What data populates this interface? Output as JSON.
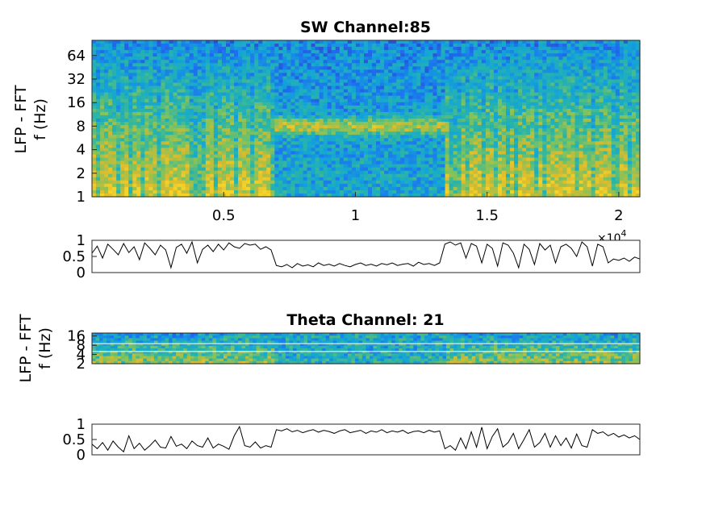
{
  "chart_data": [
    {
      "type": "heatmap",
      "title": "SW Channel:85",
      "ylabel_lines": [
        "LFP - FFT",
        "f (Hz)"
      ],
      "y_scale": "log",
      "y_ticks": [
        "1",
        "2",
        "4",
        "8",
        "16",
        "32",
        "64"
      ],
      "y_tick_values": [
        1,
        2,
        4,
        8,
        16,
        32,
        64
      ],
      "ylim": [
        1,
        100
      ],
      "x_ticks": [
        "0.5",
        "1",
        "1.5",
        "2"
      ],
      "x_tick_values": [
        0.5,
        1,
        1.5,
        2
      ],
      "xlim": [
        0,
        2.08
      ],
      "x_exponent": "×10",
      "x_exponent_power": "4",
      "colormap": [
        "#3e26a8",
        "#1e6ef2",
        "#13a5d8",
        "#2bb5a5",
        "#7fc35e",
        "#d9ba2e",
        "#f5d42a"
      ],
      "low_power_intervals": [
        [
          0.69,
          1.34
        ]
      ],
      "band_peak_hz": 8
    },
    {
      "type": "line",
      "title": "",
      "y_ticks": [
        "0",
        "0.5",
        "1"
      ],
      "y_tick_values": [
        0,
        0.5,
        1
      ],
      "ylim": [
        0,
        1
      ],
      "xlim": [
        0,
        2.08
      ],
      "x": [
        0.0,
        0.02,
        0.04,
        0.06,
        0.08,
        0.1,
        0.12,
        0.14,
        0.16,
        0.18,
        0.2,
        0.22,
        0.24,
        0.26,
        0.28,
        0.3,
        0.32,
        0.34,
        0.36,
        0.38,
        0.4,
        0.42,
        0.44,
        0.46,
        0.48,
        0.5,
        0.52,
        0.54,
        0.56,
        0.58,
        0.6,
        0.62,
        0.64,
        0.66,
        0.68,
        0.7,
        0.72,
        0.74,
        0.76,
        0.78,
        0.8,
        0.82,
        0.84,
        0.86,
        0.88,
        0.9,
        0.92,
        0.94,
        0.96,
        0.98,
        1.0,
        1.02,
        1.04,
        1.06,
        1.08,
        1.1,
        1.12,
        1.14,
        1.16,
        1.18,
        1.2,
        1.22,
        1.24,
        1.26,
        1.28,
        1.3,
        1.32,
        1.34,
        1.36,
        1.38,
        1.4,
        1.42,
        1.44,
        1.46,
        1.48,
        1.5,
        1.52,
        1.54,
        1.56,
        1.58,
        1.6,
        1.62,
        1.64,
        1.66,
        1.68,
        1.7,
        1.72,
        1.74,
        1.76,
        1.78,
        1.8,
        1.82,
        1.84,
        1.86,
        1.88,
        1.9,
        1.92,
        1.94,
        1.96,
        1.98,
        2.0,
        2.02,
        2.04,
        2.06,
        2.08
      ],
      "values": [
        0.6,
        0.82,
        0.45,
        0.88,
        0.72,
        0.55,
        0.9,
        0.62,
        0.8,
        0.4,
        0.92,
        0.75,
        0.55,
        0.85,
        0.7,
        0.15,
        0.78,
        0.88,
        0.6,
        0.95,
        0.3,
        0.72,
        0.85,
        0.65,
        0.88,
        0.7,
        0.92,
        0.8,
        0.75,
        0.9,
        0.85,
        0.88,
        0.72,
        0.8,
        0.7,
        0.22,
        0.18,
        0.25,
        0.15,
        0.28,
        0.2,
        0.24,
        0.18,
        0.3,
        0.22,
        0.26,
        0.2,
        0.28,
        0.22,
        0.18,
        0.25,
        0.3,
        0.22,
        0.26,
        0.2,
        0.28,
        0.24,
        0.3,
        0.22,
        0.26,
        0.28,
        0.2,
        0.32,
        0.25,
        0.28,
        0.22,
        0.3,
        0.88,
        0.95,
        0.85,
        0.92,
        0.45,
        0.9,
        0.82,
        0.3,
        0.88,
        0.75,
        0.2,
        0.92,
        0.85,
        0.6,
        0.15,
        0.88,
        0.72,
        0.25,
        0.9,
        0.7,
        0.85,
        0.3,
        0.8,
        0.88,
        0.75,
        0.5,
        0.95,
        0.8,
        0.2,
        0.88,
        0.8,
        0.3,
        0.42,
        0.38,
        0.45,
        0.35,
        0.48,
        0.42
      ]
    },
    {
      "type": "heatmap",
      "title": "Theta Channel: 21",
      "ylabel_lines": [
        "LFP - FFT",
        "f (Hz)"
      ],
      "y_scale": "log",
      "y_ticks": [
        "2",
        "4",
        "8",
        "16"
      ],
      "y_tick_values": [
        2,
        4,
        8,
        16
      ],
      "ylim": [
        2,
        20
      ],
      "xlim": [
        0,
        2.08
      ],
      "colormap": [
        "#3e26a8",
        "#1e6ef2",
        "#13a5d8",
        "#2bb5a5",
        "#7fc35e",
        "#d9ba2e",
        "#f5d42a"
      ],
      "white_lines_hz": [
        5,
        9
      ],
      "low_power_intervals": [
        [
          0.69,
          1.34
        ]
      ]
    },
    {
      "type": "line",
      "title": "",
      "y_ticks": [
        "0",
        "0.5",
        "1"
      ],
      "y_tick_values": [
        0,
        0.5,
        1
      ],
      "ylim": [
        0,
        1
      ],
      "xlim": [
        0,
        2.08
      ],
      "x": [
        0.0,
        0.02,
        0.04,
        0.06,
        0.08,
        0.1,
        0.12,
        0.14,
        0.16,
        0.18,
        0.2,
        0.22,
        0.24,
        0.26,
        0.28,
        0.3,
        0.32,
        0.34,
        0.36,
        0.38,
        0.4,
        0.42,
        0.44,
        0.46,
        0.48,
        0.5,
        0.52,
        0.54,
        0.56,
        0.58,
        0.6,
        0.62,
        0.64,
        0.66,
        0.68,
        0.7,
        0.72,
        0.74,
        0.76,
        0.78,
        0.8,
        0.82,
        0.84,
        0.86,
        0.88,
        0.9,
        0.92,
        0.94,
        0.96,
        0.98,
        1.0,
        1.02,
        1.04,
        1.06,
        1.08,
        1.1,
        1.12,
        1.14,
        1.16,
        1.18,
        1.2,
        1.22,
        1.24,
        1.26,
        1.28,
        1.3,
        1.32,
        1.34,
        1.36,
        1.38,
        1.4,
        1.42,
        1.44,
        1.46,
        1.48,
        1.5,
        1.52,
        1.54,
        1.56,
        1.58,
        1.6,
        1.62,
        1.64,
        1.66,
        1.68,
        1.7,
        1.72,
        1.74,
        1.76,
        1.78,
        1.8,
        1.82,
        1.84,
        1.86,
        1.88,
        1.9,
        1.92,
        1.94,
        1.96,
        1.98,
        2.0,
        2.02,
        2.04,
        2.06,
        2.08
      ],
      "values": [
        0.35,
        0.2,
        0.4,
        0.15,
        0.45,
        0.25,
        0.1,
        0.62,
        0.2,
        0.38,
        0.15,
        0.3,
        0.48,
        0.25,
        0.22,
        0.6,
        0.28,
        0.35,
        0.2,
        0.45,
        0.3,
        0.25,
        0.55,
        0.22,
        0.35,
        0.28,
        0.18,
        0.62,
        0.92,
        0.3,
        0.25,
        0.42,
        0.22,
        0.3,
        0.25,
        0.82,
        0.78,
        0.85,
        0.75,
        0.8,
        0.72,
        0.78,
        0.82,
        0.74,
        0.8,
        0.76,
        0.7,
        0.78,
        0.82,
        0.72,
        0.76,
        0.8,
        0.7,
        0.78,
        0.74,
        0.82,
        0.72,
        0.78,
        0.74,
        0.8,
        0.7,
        0.76,
        0.78,
        0.72,
        0.8,
        0.74,
        0.78,
        0.2,
        0.3,
        0.15,
        0.55,
        0.2,
        0.75,
        0.25,
        0.9,
        0.2,
        0.6,
        0.85,
        0.25,
        0.4,
        0.7,
        0.2,
        0.5,
        0.82,
        0.25,
        0.4,
        0.7,
        0.25,
        0.62,
        0.3,
        0.55,
        0.22,
        0.68,
        0.3,
        0.25,
        0.82,
        0.7,
        0.75,
        0.62,
        0.7,
        0.58,
        0.65,
        0.55,
        0.62,
        0.5
      ]
    }
  ]
}
